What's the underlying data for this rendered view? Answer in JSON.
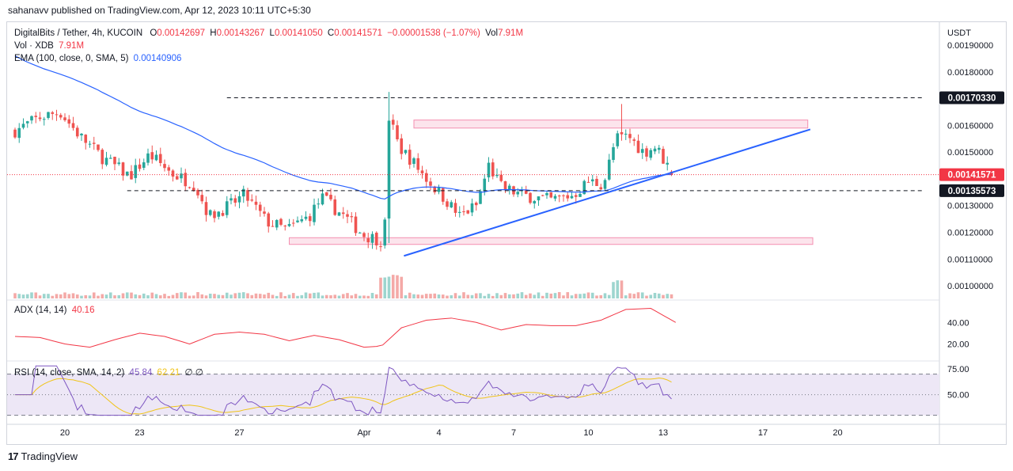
{
  "header": {
    "published": "sahanavv published on TradingView.com, Apr 12, 2023 10:11 UTC+5:30"
  },
  "legend": {
    "symbol": "DigitalBits / Tether, 4h, KUCOIN",
    "o_label": "O",
    "o_value": "0.00142697",
    "h_label": "H",
    "h_value": "0.00143267",
    "l_label": "L",
    "l_value": "0.00141050",
    "c_label": "C",
    "c_value": "0.00141571",
    "change": "−0.00001538 (−1.07%)",
    "vol_label": "Vol",
    "vol_value": "7.91M",
    "vol_line_label": "Vol · XDB",
    "vol_line_value": "7.91M",
    "ema_label": "EMA (100, close, 0, SMA, 5)",
    "ema_value": "0.00140906",
    "adx_label": "ADX (14, 14)",
    "adx_value": "40.16",
    "rsi_label": "RSI (14, close, SMA, 14, 2)",
    "rsi_value": "45.84",
    "rsi_ma_value": "62.21",
    "rsi_extra": "∅ ∅"
  },
  "footer": {
    "logo_mark": "17",
    "brand": "TradingView"
  },
  "colors": {
    "up": "#26a69a",
    "down": "#ef5350",
    "ema": "#2962ff",
    "trendline": "#2962ff",
    "zone": "#fce4ec",
    "zone_border": "#f48fb1",
    "adx": "#f23645",
    "rsi": "#7e57c2",
    "rsi_ma": "#f0c419",
    "rsi_band": "#ede7f6"
  },
  "chart_data": {
    "type": "candlestick",
    "title": "DigitalBits / Tether, 4h, KUCOIN",
    "currency": "USDT",
    "price_axis": {
      "unit": "USDT",
      "ticks": [
        "0.00190000",
        "0.00180000",
        "0.00160000",
        "0.00150000",
        "0.00130000",
        "0.00120000",
        "0.00110000",
        "0.00100000"
      ],
      "range": [
        0.00095,
        0.00198
      ]
    },
    "price_labels": [
      {
        "text": "0.00170330",
        "value": 0.0017033,
        "style": "dark"
      },
      {
        "text": "0.00141571",
        "value": 0.00141571,
        "style": "red"
      },
      {
        "text": "0.00135573",
        "value": 0.00135573,
        "style": "dark"
      }
    ],
    "time_axis": {
      "labels": [
        "20",
        "23",
        "27",
        "Apr",
        "4",
        "7",
        "10",
        "13",
        "17",
        "20"
      ],
      "first_day_index": 2
    },
    "horizontal_lines": [
      {
        "value": 0.0017033,
        "from_day": 8.5,
        "to_day": 36.5,
        "style": "dashed"
      },
      {
        "value": 0.00135573,
        "from_day": 4.5,
        "to_day": 36.5,
        "style": "dashed"
      }
    ],
    "zones": [
      {
        "from_day": 16.0,
        "to_day": 31.8,
        "low": 0.00159,
        "high": 0.00162
      },
      {
        "from_day": 11.0,
        "to_day": 32.0,
        "low": 0.001155,
        "high": 0.00118
      }
    ],
    "trendline": {
      "from_day": 15.6,
      "from_value": 0.001112,
      "to_day": 31.9,
      "to_value": 0.001585
    },
    "adx": {
      "ticks": [
        "40.00",
        "20.00"
      ],
      "range": [
        5,
        60
      ],
      "last": 40.16
    },
    "rsi": {
      "ticks": [
        "75.00",
        "50.00"
      ],
      "range": [
        22,
        82
      ],
      "upper": 70,
      "lower": 30,
      "mid": 50,
      "last": 45.84,
      "ma_last": 62.21
    }
  }
}
